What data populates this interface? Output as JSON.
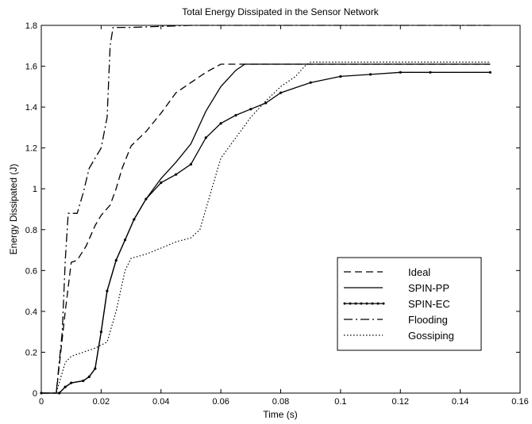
{
  "chart_data": {
    "type": "line",
    "title": "Total Energy Dissipated in the Sensor Network",
    "xlabel": "Time (s)",
    "ylabel": "Energy Dissipated (J)",
    "xlim": [
      0,
      0.16
    ],
    "ylim": [
      0,
      1.8
    ],
    "xticks": [
      0,
      0.02,
      0.04,
      0.06,
      0.08,
      0.1,
      0.12,
      0.14,
      0.16
    ],
    "xtick_labels": [
      "0",
      "0.02",
      "0.04",
      "0.06",
      "0.08",
      "0.1",
      "0.12",
      "0.14",
      "0.16"
    ],
    "yticks": [
      0,
      0.2,
      0.4,
      0.6,
      0.8,
      1,
      1.2,
      1.4,
      1.6,
      1.8
    ],
    "ytick_labels": [
      "0",
      "0.2",
      "0.4",
      "0.6",
      "0.8",
      "1",
      "1.2",
      "1.4",
      "1.6",
      "1.8"
    ],
    "grid": false,
    "legend_position": "lower-right",
    "series": [
      {
        "name": "Ideal",
        "style": "dashed",
        "color": "#000000",
        "x": [
          0,
          0.005,
          0.008,
          0.01,
          0.012,
          0.015,
          0.018,
          0.02,
          0.023,
          0.025,
          0.027,
          0.03,
          0.035,
          0.04,
          0.045,
          0.05,
          0.055,
          0.06,
          0.062,
          0.065,
          0.07,
          0.08,
          0.1,
          0.12,
          0.15
        ],
        "y": [
          0,
          0,
          0.4,
          0.64,
          0.65,
          0.72,
          0.82,
          0.87,
          0.92,
          1.0,
          1.1,
          1.21,
          1.28,
          1.37,
          1.47,
          1.52,
          1.57,
          1.61,
          1.61,
          1.61,
          1.61,
          1.61,
          1.61,
          1.61,
          1.61
        ]
      },
      {
        "name": "SPIN-PP",
        "style": "solid",
        "color": "#000000",
        "x": [
          0,
          0.006,
          0.008,
          0.01,
          0.014,
          0.016,
          0.018,
          0.02,
          0.022,
          0.025,
          0.028,
          0.031,
          0.035,
          0.04,
          0.045,
          0.05,
          0.055,
          0.06,
          0.065,
          0.068,
          0.07,
          0.08,
          0.1,
          0.12,
          0.15
        ],
        "y": [
          0,
          0,
          0.03,
          0.05,
          0.06,
          0.08,
          0.12,
          0.3,
          0.5,
          0.65,
          0.75,
          0.85,
          0.95,
          1.05,
          1.13,
          1.22,
          1.38,
          1.5,
          1.58,
          1.61,
          1.61,
          1.61,
          1.61,
          1.61,
          1.61
        ]
      },
      {
        "name": "SPIN-EC",
        "style": "solid-dotted",
        "color": "#000000",
        "x": [
          0,
          0.006,
          0.008,
          0.01,
          0.014,
          0.016,
          0.018,
          0.02,
          0.022,
          0.025,
          0.028,
          0.031,
          0.035,
          0.04,
          0.045,
          0.05,
          0.055,
          0.06,
          0.065,
          0.07,
          0.075,
          0.08,
          0.09,
          0.1,
          0.11,
          0.12,
          0.13,
          0.15
        ],
        "y": [
          0,
          0,
          0.03,
          0.05,
          0.06,
          0.08,
          0.12,
          0.3,
          0.5,
          0.65,
          0.75,
          0.85,
          0.95,
          1.03,
          1.07,
          1.12,
          1.25,
          1.32,
          1.36,
          1.39,
          1.42,
          1.47,
          1.52,
          1.55,
          1.56,
          1.57,
          1.57,
          1.57
        ]
      },
      {
        "name": "Flooding",
        "style": "dash-dot",
        "color": "#000000",
        "x": [
          0,
          0.005,
          0.007,
          0.008,
          0.009,
          0.01,
          0.012,
          0.014,
          0.016,
          0.018,
          0.02,
          0.022,
          0.023,
          0.024,
          0.025,
          0.03,
          0.05,
          0.1,
          0.15
        ],
        "y": [
          0,
          0,
          0.3,
          0.65,
          0.88,
          0.88,
          0.88,
          0.98,
          1.1,
          1.15,
          1.2,
          1.35,
          1.7,
          1.79,
          1.79,
          1.79,
          1.8,
          1.8,
          1.8
        ]
      },
      {
        "name": "Gossiping",
        "style": "dotted",
        "color": "#000000",
        "x": [
          0,
          0.005,
          0.008,
          0.01,
          0.014,
          0.018,
          0.022,
          0.025,
          0.028,
          0.03,
          0.035,
          0.04,
          0.045,
          0.05,
          0.053,
          0.056,
          0.06,
          0.065,
          0.07,
          0.075,
          0.08,
          0.085,
          0.088,
          0.09,
          0.1,
          0.15
        ],
        "y": [
          0,
          0,
          0.15,
          0.18,
          0.2,
          0.22,
          0.25,
          0.4,
          0.6,
          0.66,
          0.68,
          0.71,
          0.74,
          0.76,
          0.8,
          0.95,
          1.15,
          1.25,
          1.35,
          1.43,
          1.5,
          1.55,
          1.6,
          1.62,
          1.62,
          1.62
        ]
      }
    ]
  }
}
